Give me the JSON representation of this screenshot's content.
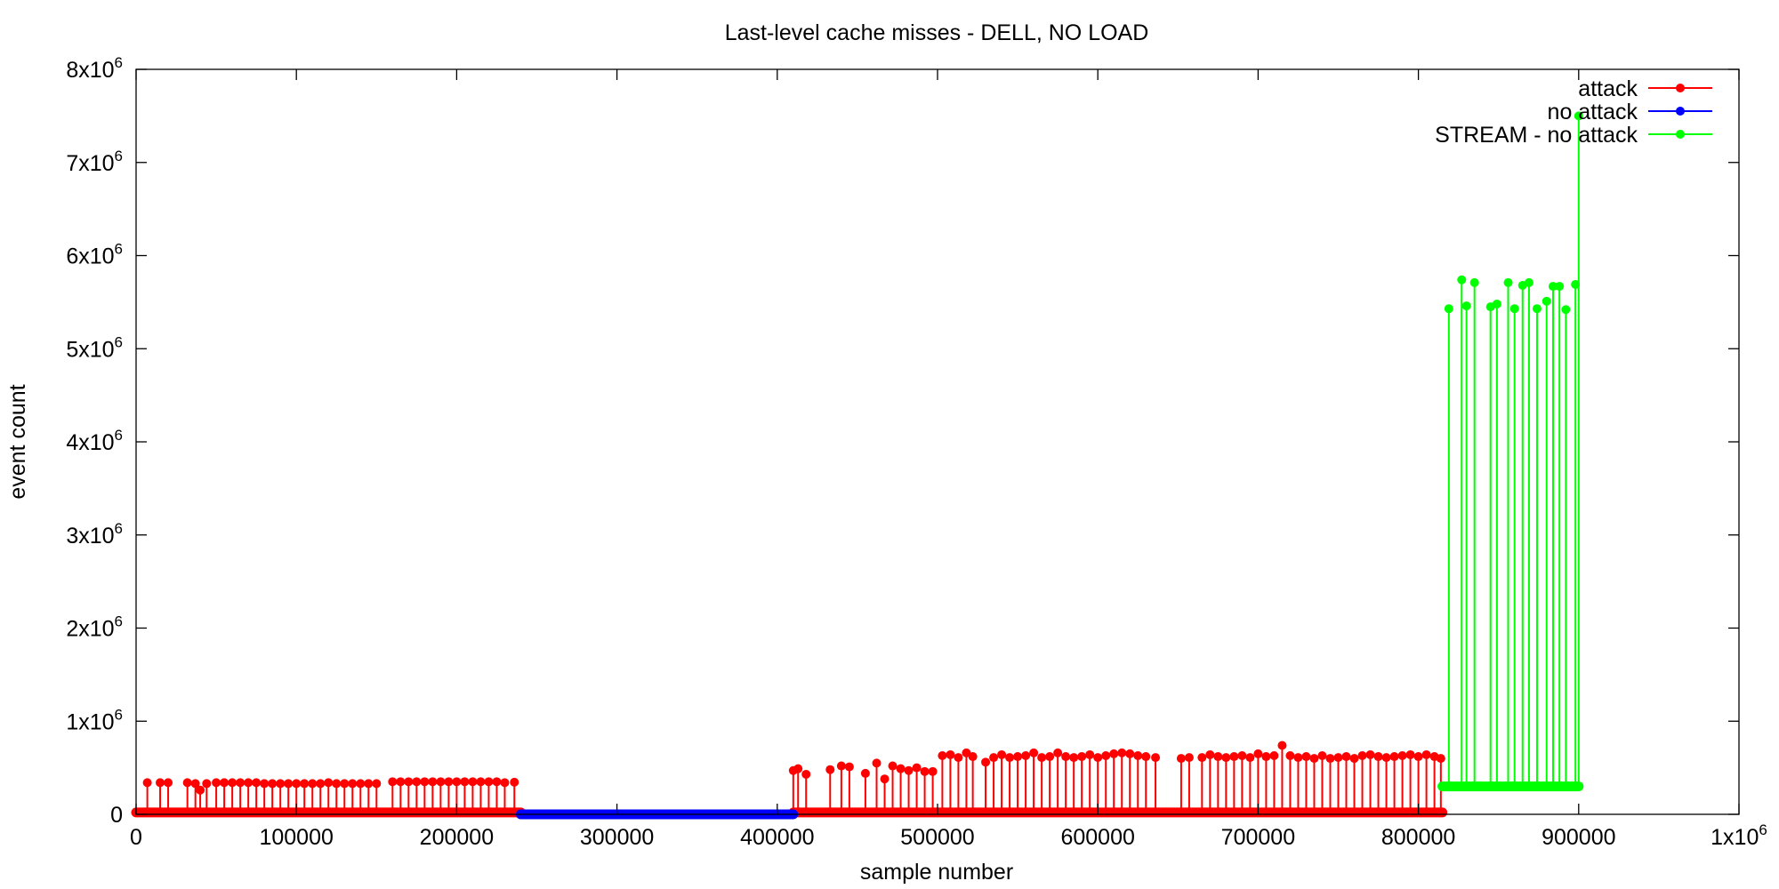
{
  "chart_data": {
    "type": "line",
    "title": "Last-level cache misses - DELL, NO LOAD",
    "xlabel": "sample number",
    "ylabel": "event count",
    "xlim": [
      0,
      1000000
    ],
    "ylim": [
      0,
      8000000
    ],
    "grid": false,
    "legend_position": "top-right",
    "x_ticks": [
      {
        "value": 0,
        "label": "0"
      },
      {
        "value": 100000,
        "label": "100000"
      },
      {
        "value": 200000,
        "label": "200000"
      },
      {
        "value": 300000,
        "label": "300000"
      },
      {
        "value": 400000,
        "label": "400000"
      },
      {
        "value": 500000,
        "label": "500000"
      },
      {
        "value": 600000,
        "label": "600000"
      },
      {
        "value": 700000,
        "label": "700000"
      },
      {
        "value": 800000,
        "label": "800000"
      },
      {
        "value": 900000,
        "label": "900000"
      },
      {
        "value": 1000000,
        "label": "1x10",
        "sup": "6"
      }
    ],
    "y_ticks": [
      {
        "value": 0,
        "label": "0"
      },
      {
        "value": 1000000,
        "label": "1x10",
        "sup": "6"
      },
      {
        "value": 2000000,
        "label": "2x10",
        "sup": "6"
      },
      {
        "value": 3000000,
        "label": "3x10",
        "sup": "6"
      },
      {
        "value": 4000000,
        "label": "4x10",
        "sup": "6"
      },
      {
        "value": 5000000,
        "label": "5x10",
        "sup": "6"
      },
      {
        "value": 6000000,
        "label": "6x10",
        "sup": "6"
      },
      {
        "value": 7000000,
        "label": "7x10",
        "sup": "6"
      },
      {
        "value": 8000000,
        "label": "8x10",
        "sup": "6"
      }
    ],
    "series": [
      {
        "name": "attack",
        "color": "#ff0000",
        "baseline": 20000,
        "x_range": [
          0,
          240000
        ],
        "spike_x": [
          7000,
          15000,
          20000,
          32000,
          37000,
          40000,
          44000,
          50000,
          55000,
          60000,
          65000,
          70000,
          75000,
          80000,
          85000,
          90000,
          95000,
          100000,
          105000,
          110000,
          115000,
          120000,
          125000,
          130000,
          135000,
          140000,
          145000,
          150000,
          160000,
          165000,
          170000,
          175000,
          180000,
          185000,
          190000,
          195000,
          200000,
          205000,
          210000,
          215000,
          220000,
          225000,
          230000,
          236000
        ],
        "spike_y": [
          340000,
          340000,
          340000,
          340000,
          330000,
          260000,
          330000,
          340000,
          340000,
          340000,
          340000,
          340000,
          340000,
          330000,
          330000,
          330000,
          330000,
          330000,
          330000,
          330000,
          330000,
          340000,
          330000,
          330000,
          330000,
          330000,
          330000,
          330000,
          350000,
          350000,
          350000,
          350000,
          350000,
          350000,
          350000,
          350000,
          350000,
          350000,
          350000,
          350000,
          350000,
          350000,
          340000,
          345000
        ]
      },
      {
        "name": "attack",
        "color": "#ff0000",
        "baseline": 20000,
        "x_range": [
          410000,
          815000
        ],
        "spike_x": [
          410000,
          413000,
          418000,
          433000,
          440000,
          445000,
          455000,
          462000,
          467000,
          472000,
          477000,
          482000,
          487000,
          492000,
          497000,
          503000,
          508000,
          513000,
          518000,
          522000,
          530000,
          535000,
          540000,
          545000,
          550000,
          555000,
          560000,
          565000,
          570000,
          575000,
          580000,
          585000,
          590000,
          595000,
          600000,
          605000,
          610000,
          615000,
          620000,
          625000,
          630000,
          636000,
          652000,
          657000,
          665000,
          670000,
          675000,
          680000,
          685000,
          690000,
          695000,
          700000,
          705000,
          710000,
          715000,
          720000,
          725000,
          730000,
          735000,
          740000,
          745000,
          750000,
          755000,
          760000,
          765000,
          770000,
          775000,
          780000,
          785000,
          790000,
          795000,
          800000,
          805000,
          810000,
          814000
        ],
        "spike_y": [
          470000,
          490000,
          430000,
          480000,
          520000,
          510000,
          440000,
          550000,
          380000,
          520000,
          490000,
          470000,
          500000,
          460000,
          460000,
          630000,
          640000,
          610000,
          660000,
          620000,
          560000,
          610000,
          640000,
          610000,
          620000,
          630000,
          660000,
          610000,
          620000,
          660000,
          620000,
          610000,
          620000,
          640000,
          610000,
          630000,
          650000,
          660000,
          650000,
          630000,
          620000,
          610000,
          600000,
          610000,
          610000,
          640000,
          620000,
          610000,
          620000,
          630000,
          610000,
          650000,
          620000,
          630000,
          740000,
          630000,
          610000,
          620000,
          600000,
          630000,
          600000,
          610000,
          620000,
          600000,
          630000,
          640000,
          620000,
          610000,
          620000,
          630000,
          640000,
          620000,
          640000,
          620000,
          600000
        ]
      },
      {
        "name": "no attack",
        "color": "#0000ff",
        "baseline": 0,
        "x_range": [
          240000,
          410000
        ],
        "spike_x": [],
        "spike_y": []
      },
      {
        "name": "STREAM - no attack",
        "color": "#00ff00",
        "baseline": 300000,
        "x_range": [
          815000,
          900000
        ],
        "spike_x": [
          819000,
          827000,
          830000,
          835000,
          845000,
          849000,
          856000,
          860000,
          865000,
          869000,
          874000,
          880000,
          884000,
          888000,
          892000,
          898000,
          900000
        ],
        "spike_y": [
          5430000,
          5740000,
          5460000,
          5710000,
          5450000,
          5480000,
          5710000,
          5430000,
          5680000,
          5710000,
          5430000,
          5510000,
          5670000,
          5670000,
          5420000,
          5690000,
          7500000
        ]
      }
    ]
  }
}
